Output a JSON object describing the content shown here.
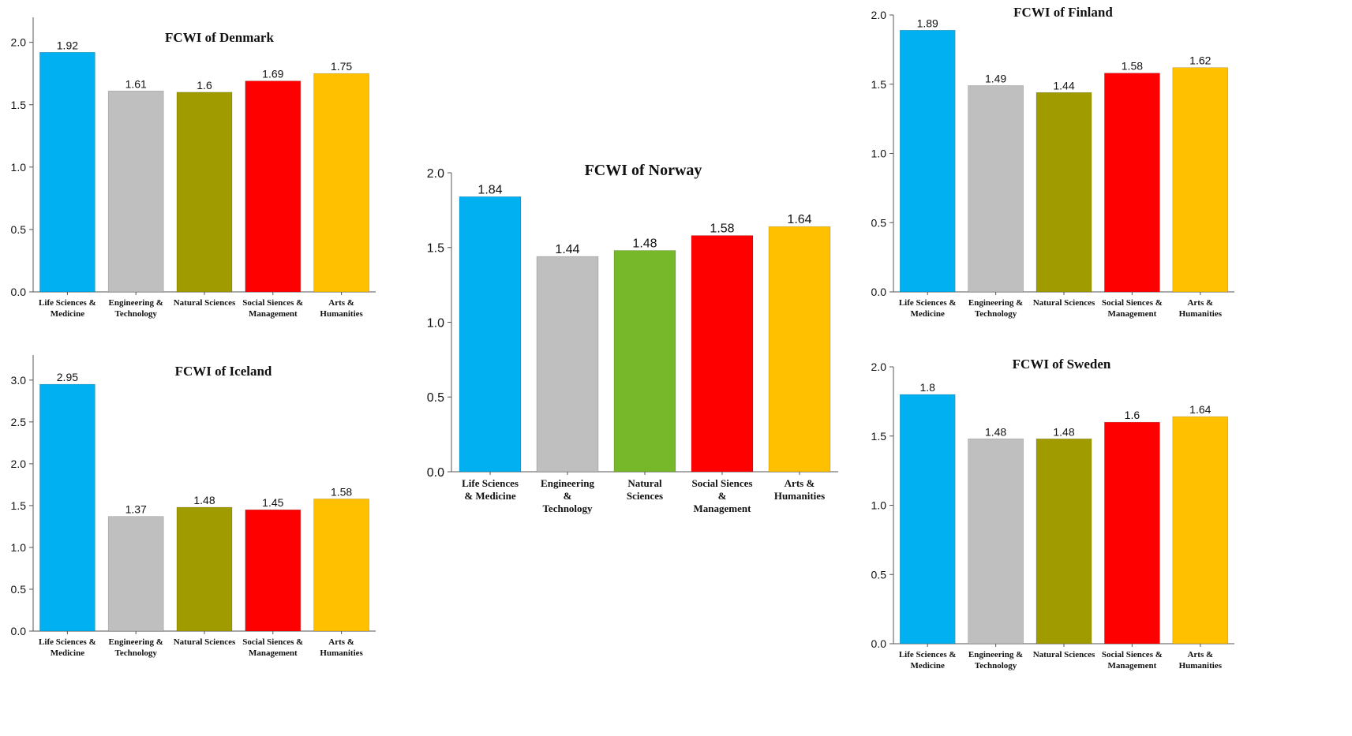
{
  "chart_data": [
    {
      "type": "bar",
      "title": "FCWI of Denmark",
      "categories": [
        [
          "Life Sciences &",
          "Medicine"
        ],
        [
          "Engineering &",
          "Technology"
        ],
        [
          "Natural Sciences"
        ],
        [
          "Social Siences &",
          "Management"
        ],
        [
          "Arts &",
          "Humanities"
        ]
      ],
      "values": [
        1.92,
        1.61,
        1.6,
        1.69,
        1.75
      ],
      "value_labels": [
        "1.92",
        "1.61",
        "1.6",
        "1.69",
        "1.75"
      ],
      "colors": [
        "#00b0f0",
        "#bfbfbf",
        "#a09c00",
        "#ff0000",
        "#ffc000"
      ],
      "ylim": [
        0,
        2.2
      ],
      "yticks": [
        "0.0",
        "0.5",
        "1.0",
        "1.5",
        "2.0"
      ],
      "grid": false
    },
    {
      "type": "bar",
      "title": "FCWI of Iceland",
      "categories": [
        [
          "Life Sciences &",
          "Medicine"
        ],
        [
          "Engineering &",
          "Technology"
        ],
        [
          "Natural Sciences"
        ],
        [
          "Social Siences &",
          "Management"
        ],
        [
          "Arts &",
          "Humanities"
        ]
      ],
      "values": [
        2.95,
        1.37,
        1.48,
        1.45,
        1.58
      ],
      "value_labels": [
        "2.95",
        "1.37",
        "1.48",
        "1.45",
        "1.58"
      ],
      "colors": [
        "#00b0f0",
        "#bfbfbf",
        "#a09c00",
        "#ff0000",
        "#ffc000"
      ],
      "ylim": [
        0,
        3.3
      ],
      "yticks": [
        "0.0",
        "0.5",
        "1.0",
        "1.5",
        "2.0",
        "2.5",
        "3.0"
      ],
      "grid": false
    },
    {
      "type": "bar",
      "title": "FCWI of Norway",
      "categories": [
        [
          "Life Sciences",
          "& Medicine"
        ],
        [
          "Engineering",
          "&",
          "Technology"
        ],
        [
          "Natural",
          "Sciences"
        ],
        [
          "Social Siences",
          "&",
          "Management"
        ],
        [
          "Arts &",
          "Humanities"
        ]
      ],
      "values": [
        1.84,
        1.44,
        1.48,
        1.58,
        1.64
      ],
      "value_labels": [
        "1.84",
        "1.44",
        "1.48",
        "1.58",
        "1.64"
      ],
      "colors": [
        "#00b0f0",
        "#bfbfbf",
        "#76b82a",
        "#ff0000",
        "#ffc000"
      ],
      "ylim": [
        0,
        2.0
      ],
      "yticks": [
        "0.0",
        "0.5",
        "1.0",
        "1.5",
        "2.0"
      ],
      "grid": false
    },
    {
      "type": "bar",
      "title": "FCWI of Finland",
      "categories": [
        [
          "Life Sciences &",
          "Medicine"
        ],
        [
          "Engineering &",
          "Technology"
        ],
        [
          "Natural Sciences"
        ],
        [
          "Social Siences &",
          "Management"
        ],
        [
          "Arts &",
          "Humanities"
        ]
      ],
      "values": [
        1.89,
        1.49,
        1.44,
        1.58,
        1.62
      ],
      "value_labels": [
        "1.89",
        "1.49",
        "1.44",
        "1.58",
        "1.62"
      ],
      "colors": [
        "#00b0f0",
        "#bfbfbf",
        "#a09c00",
        "#ff0000",
        "#ffc000"
      ],
      "ylim": [
        0,
        2.0
      ],
      "yticks": [
        "0.0",
        "0.5",
        "1.0",
        "1.5",
        "2.0"
      ],
      "grid": false
    },
    {
      "type": "bar",
      "title": "FCWI of Sweden",
      "categories": [
        [
          "Life Sciences &",
          "Medicine"
        ],
        [
          "Engineering &",
          "Technology"
        ],
        [
          "Natural Sciences"
        ],
        [
          "Social Siences &",
          "Management"
        ],
        [
          "Arts &",
          "Humanities"
        ]
      ],
      "values": [
        1.8,
        1.48,
        1.48,
        1.6,
        1.64
      ],
      "value_labels": [
        "1.8",
        "1.48",
        "1.48",
        "1.6",
        "1.64"
      ],
      "colors": [
        "#00b0f0",
        "#bfbfbf",
        "#a09c00",
        "#ff0000",
        "#ffc000"
      ],
      "ylim": [
        0,
        2.0
      ],
      "yticks": [
        "0.0",
        "0.5",
        "1.0",
        "1.5",
        "2.0"
      ],
      "grid": false
    }
  ]
}
